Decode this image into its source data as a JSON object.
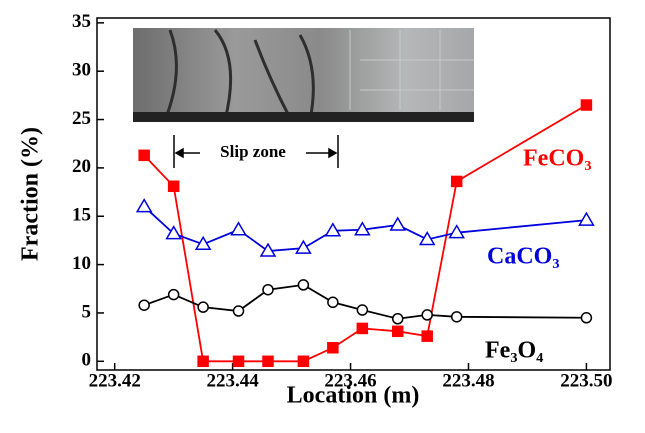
{
  "chart_data": {
    "type": "line",
    "xlabel": "Location (m)",
    "ylabel": "Fraction (%)",
    "annotation": "Slip zone",
    "xlim": [
      223.417,
      223.504
    ],
    "ylim": [
      -0.9,
      35.5
    ],
    "xticks": [
      223.42,
      223.44,
      223.46,
      223.48,
      {
        "value": 223.5,
        "label": "223.50"
      }
    ],
    "yticks": [
      0,
      5,
      10,
      15,
      20,
      25,
      30,
      35
    ],
    "x": [
      223.425,
      223.43,
      223.435,
      223.441,
      223.446,
      223.452,
      223.457,
      223.462,
      223.468,
      223.473,
      223.478,
      223.5
    ],
    "series": [
      {
        "name": "FeCO₃",
        "color": "#ff0000",
        "marker": "square",
        "values": [
          21.3,
          18.1,
          0,
          0,
          0,
          0,
          1.4,
          3.4,
          3.1,
          2.6,
          18.6,
          26.5
        ]
      },
      {
        "name": "CaCO₃",
        "color": "#0000dd",
        "marker": "triangle",
        "values": [
          16.0,
          13.2,
          12.1,
          13.6,
          11.4,
          11.7,
          13.5,
          13.6,
          14.1,
          12.6,
          13.3,
          14.6
        ]
      },
      {
        "name": "Fe₃O₄",
        "color": "#000000",
        "marker": "circle",
        "values": [
          5.8,
          6.9,
          5.6,
          5.2,
          7.4,
          7.9,
          6.1,
          5.3,
          4.4,
          4.8,
          4.6,
          4.5
        ]
      }
    ]
  }
}
